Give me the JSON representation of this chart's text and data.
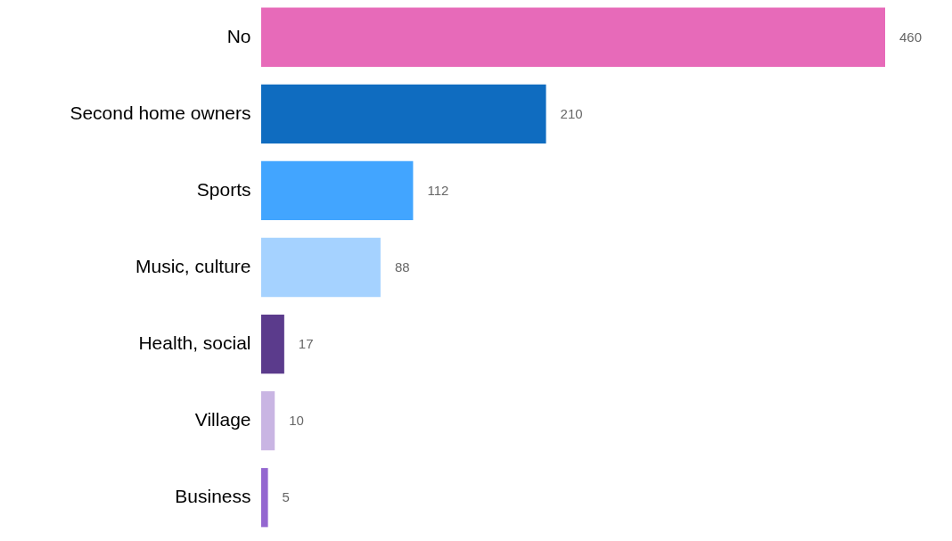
{
  "chart_data": {
    "type": "bar",
    "orientation": "horizontal",
    "data_labels": true,
    "categories": [
      "No",
      "Second home owners",
      "Sports",
      "Music, culture",
      "Health, social",
      "Village",
      "Business"
    ],
    "values": [
      460,
      210,
      112,
      88,
      17,
      10,
      5
    ],
    "colors": [
      "#e76ab9",
      "#0f6cc0",
      "#42a5ff",
      "#a5d2ff",
      "#5b3b8c",
      "#c9b5e3",
      "#9467d0"
    ]
  }
}
